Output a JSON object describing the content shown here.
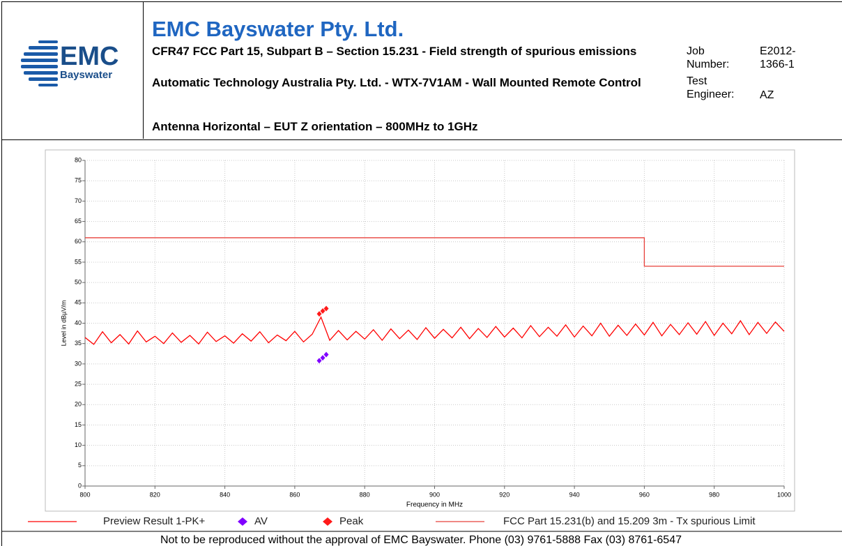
{
  "logo": {
    "name": "EMC",
    "sub": "Bayswater"
  },
  "header": {
    "title": "EMC Bayswater Pty. Ltd.",
    "lines": [
      "CFR47 FCC Part 15, Subpart B – Section 15.231 - Field strength of spurious emissions",
      "Automatic Technology Australia Pty. Ltd. - WTX-7V1AM - Wall Mounted Remote Control",
      "Antenna Horizontal – EUT Z orientation – 800MHz to 1GHz"
    ],
    "job_label": "Job Number:",
    "job_value": "E2012-1366-1",
    "engineer_label": "Test Engineer:",
    "engineer_value": "AZ"
  },
  "chart_data": {
    "type": "line",
    "x_label": "Frequency in MHz",
    "y_label": "Level in dBµV/m",
    "xlim": [
      800,
      1000
    ],
    "xticks": [
      800,
      820,
      840,
      860,
      880,
      900,
      920,
      940,
      960,
      980,
      1000
    ],
    "ylim": [
      0,
      80
    ],
    "yticks": [
      0,
      5,
      10,
      15,
      20,
      25,
      30,
      35,
      40,
      45,
      50,
      55,
      60,
      65,
      70,
      75,
      80
    ],
    "grid": true,
    "series": [
      {
        "name": "Preview Result 1-PK+",
        "color": "#ff0000",
        "marker": "none",
        "x": [
          800,
          802.5,
          805,
          807.5,
          810,
          812.5,
          815,
          817.5,
          820,
          822.5,
          825,
          827.5,
          830,
          832.5,
          835,
          837.5,
          840,
          842.5,
          845,
          847.5,
          850,
          852.5,
          855,
          857.5,
          860,
          862.5,
          865,
          867.5,
          870,
          872.5,
          875,
          877.5,
          880,
          882.5,
          885,
          887.5,
          890,
          892.5,
          895,
          897.5,
          900,
          902.5,
          905,
          907.5,
          910,
          912.5,
          915,
          917.5,
          920,
          922.5,
          925,
          927.5,
          930,
          932.5,
          935,
          937.5,
          940,
          942.5,
          945,
          947.5,
          950,
          952.5,
          955,
          957.5,
          960,
          962.5,
          965,
          967.5,
          970,
          972.5,
          975,
          977.5,
          980,
          982.5,
          985,
          987.5,
          990,
          992.5,
          995,
          997.5,
          1000
        ],
        "values": [
          36.5,
          34.8,
          37.9,
          35.2,
          37.2,
          34.9,
          38.1,
          35.4,
          36.8,
          35.0,
          37.6,
          35.3,
          37.0,
          34.9,
          37.8,
          35.5,
          36.9,
          35.1,
          37.4,
          35.6,
          37.9,
          35.2,
          37.1,
          35.7,
          38.0,
          35.4,
          37.3,
          41.5,
          35.8,
          38.2,
          35.9,
          38.0,
          36.1,
          38.4,
          35.8,
          38.6,
          36.2,
          38.3,
          36.0,
          38.9,
          36.3,
          38.5,
          36.4,
          39.0,
          36.2,
          38.7,
          36.5,
          39.2,
          36.6,
          38.8,
          36.4,
          39.4,
          36.7,
          39.0,
          36.8,
          39.6,
          36.6,
          39.3,
          36.9,
          40.0,
          36.8,
          39.5,
          37.0,
          39.8,
          37.1,
          40.2,
          36.9,
          39.7,
          37.2,
          40.1,
          37.3,
          40.4,
          37.0,
          40.0,
          37.4,
          40.6,
          37.2,
          40.2,
          37.5,
          40.3,
          38.0
        ]
      },
      {
        "name": "AV",
        "color": "#8000ff",
        "marker": "diamond",
        "x": [
          867,
          868,
          869
        ],
        "values": [
          30.8,
          31.5,
          32.3
        ]
      },
      {
        "name": "Peak",
        "color": "#ff1a1a",
        "marker": "diamond",
        "x": [
          867,
          868,
          869
        ],
        "values": [
          42.3,
          43.0,
          43.6
        ]
      },
      {
        "name": "FCC Part 15.231(b) and 15.209 3m - Tx spurious Limit",
        "color": "#e8403a",
        "marker": "none",
        "x": [
          800,
          960,
          960,
          1000
        ],
        "values": [
          61,
          61,
          54,
          54
        ]
      }
    ]
  },
  "footer": "Not to be reproduced without the approval of EMC Bayswater. Phone (03) 9761-5888 Fax (03) 8761-6547"
}
